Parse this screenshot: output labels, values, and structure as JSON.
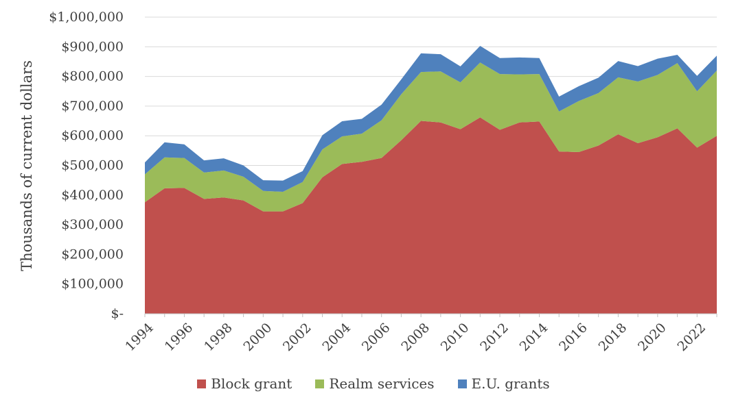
{
  "chart_data": {
    "type": "area",
    "stacked": true,
    "ylabel": "Thousands of current dollars",
    "ylim": [
      0,
      1000000
    ],
    "ytick_values": [
      0,
      100000,
      200000,
      300000,
      400000,
      500000,
      600000,
      700000,
      800000,
      900000,
      1000000
    ],
    "ytick_labels": [
      "$-",
      "$100,000",
      "$200,000",
      "$300,000",
      "$400,000",
      "$500,000",
      "$600,000",
      "$700,000",
      "$800,000",
      "$900,000",
      "$1,000,000"
    ],
    "x": [
      1994,
      1995,
      1996,
      1997,
      1998,
      1999,
      2000,
      2001,
      2002,
      2003,
      2004,
      2005,
      2006,
      2007,
      2008,
      2009,
      2010,
      2011,
      2012,
      2013,
      2014,
      2015,
      2016,
      2017,
      2018,
      2019,
      2020,
      2021,
      2022,
      2023
    ],
    "xtick_labels": [
      "1994",
      "1996",
      "1998",
      "2000",
      "2002",
      "2004",
      "2006",
      "2008",
      "2010",
      "2012",
      "2014",
      "2016",
      "2018",
      "2020",
      "2022"
    ],
    "grid": "horizontal",
    "legend_position": "bottom",
    "series": [
      {
        "name": "Block grant",
        "color": "#c0504d",
        "values": [
          376000,
          423000,
          424000,
          387000,
          392000,
          382000,
          345000,
          345000,
          373000,
          460000,
          505000,
          512000,
          525000,
          585000,
          650000,
          645000,
          622000,
          662000,
          620000,
          645000,
          648000,
          547000,
          545000,
          567000,
          605000,
          575000,
          595000,
          625000,
          560000,
          600000
        ]
      },
      {
        "name": "Realm services",
        "color": "#9bbb59",
        "values": [
          94000,
          104000,
          101000,
          89000,
          91000,
          80000,
          69000,
          66000,
          71000,
          94000,
          93000,
          95000,
          127000,
          155000,
          165000,
          172000,
          158000,
          185000,
          188000,
          162000,
          160000,
          135000,
          172000,
          177000,
          192000,
          208000,
          210000,
          220000,
          190000,
          220000
        ]
      },
      {
        "name": "E.U. grants",
        "color": "#4f81bd",
        "values": [
          40000,
          51000,
          46000,
          41000,
          41000,
          38000,
          36000,
          38000,
          37000,
          48000,
          51000,
          50000,
          53000,
          50000,
          63000,
          58000,
          54000,
          56000,
          54000,
          57000,
          54000,
          50000,
          50000,
          52000,
          55000,
          52000,
          55000,
          28000,
          52000,
          50000
        ]
      }
    ]
  }
}
